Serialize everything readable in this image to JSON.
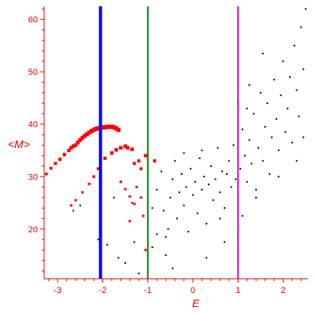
{
  "chart_data": {
    "type": "scatter",
    "xlabel": "E",
    "ylabel": "<M>",
    "xlim": [
      -3.3,
      2.55
    ],
    "ylim": [
      10.5,
      62.5
    ],
    "x_ticks": [
      -3,
      -2,
      -1,
      0,
      1,
      2
    ],
    "y_ticks": [
      20,
      30,
      40,
      50,
      60
    ],
    "x_tick_labels": [
      "-3",
      "-2",
      "-1",
      "0",
      "1",
      "2"
    ],
    "y_tick_labels": [
      "20",
      "30",
      "40",
      "50",
      "60"
    ],
    "grid": false,
    "colors": {
      "axis": "#e00000",
      "red_series": "#ff0000",
      "black_series": "#000000",
      "line_blue": "#0000ff",
      "line_green": "#008000",
      "line_magenta": "#dd00dd"
    },
    "vertical_lines": [
      {
        "x": -2.05,
        "color": "#0000ff"
      },
      {
        "x": -1.0,
        "color": "#008000"
      },
      {
        "x": 1.0,
        "color": "#dd00dd"
      }
    ],
    "series": [
      {
        "marker": "square",
        "color": "#ff0000",
        "points": [
          [
            -2.6,
            36.0
          ],
          [
            -2.55,
            36.5
          ],
          [
            -2.5,
            37.0
          ],
          [
            -2.45,
            37.4
          ],
          [
            -2.4,
            37.8
          ],
          [
            -2.35,
            38.1
          ],
          [
            -2.3,
            38.4
          ],
          [
            -2.25,
            38.7
          ],
          [
            -2.2,
            38.9
          ],
          [
            -2.15,
            39.1
          ],
          [
            -2.1,
            39.2
          ],
          [
            -2.05,
            39.3
          ],
          [
            -2.0,
            39.4
          ],
          [
            -1.95,
            39.4
          ],
          [
            -1.9,
            39.5
          ],
          [
            -1.85,
            39.5
          ],
          [
            -1.8,
            39.5
          ],
          [
            -1.75,
            39.4
          ],
          [
            -1.7,
            39.2
          ],
          [
            -1.65,
            38.9
          ],
          [
            -2.75,
            35.0
          ],
          [
            -2.85,
            34.2
          ],
          [
            -2.95,
            33.3
          ],
          [
            -3.05,
            32.5
          ],
          [
            -3.15,
            31.6
          ],
          [
            -3.25,
            30.5
          ],
          [
            -2.7,
            35.5
          ],
          [
            -2.65,
            35.8
          ],
          [
            -1.95,
            33.5
          ],
          [
            -1.8,
            34.5
          ],
          [
            -1.7,
            35.1
          ],
          [
            -1.6,
            35.5
          ],
          [
            -1.5,
            35.8
          ],
          [
            -1.45,
            35.5
          ],
          [
            -1.35,
            35.2
          ],
          [
            -2.1,
            31.5
          ],
          [
            -2.2,
            30.0
          ],
          [
            -2.3,
            28.6
          ],
          [
            -2.45,
            27.0
          ],
          [
            -2.6,
            25.5
          ],
          [
            -2.7,
            24.5
          ],
          [
            -1.6,
            29.0
          ],
          [
            -1.5,
            27.6
          ],
          [
            -1.4,
            26.2
          ],
          [
            -1.3,
            24.8
          ],
          [
            -1.2,
            33.0
          ],
          [
            -1.15,
            31.5
          ],
          [
            -1.25,
            28.0
          ],
          [
            -1.15,
            26.0
          ],
          [
            -1.3,
            32.5
          ],
          [
            -1.05,
            34.0
          ],
          [
            -0.85,
            33.0
          ],
          [
            -1.1,
            22.5
          ],
          [
            -1.05,
            16.0
          ],
          [
            -1.4,
            21.5
          ]
        ]
      },
      {
        "marker": "dot",
        "color": "#000000",
        "points": [
          [
            -2.1,
            18.0
          ],
          [
            -1.9,
            17.0
          ],
          [
            -1.65,
            14.5
          ],
          [
            -1.5,
            13.5
          ],
          [
            -1.3,
            17.5
          ],
          [
            -1.2,
            11.5
          ],
          [
            -0.9,
            16.5
          ],
          [
            -0.8,
            19.0
          ],
          [
            -0.6,
            18.5
          ],
          [
            -0.45,
            12.5
          ],
          [
            -2.65,
            23.5
          ],
          [
            -2.5,
            24.5
          ],
          [
            -1.75,
            26.0
          ],
          [
            -1.35,
            25.0
          ],
          [
            -0.9,
            24.0
          ],
          [
            -0.8,
            27.5
          ],
          [
            -0.7,
            31.0
          ],
          [
            -0.65,
            23.5
          ],
          [
            -0.55,
            20.0
          ],
          [
            -0.5,
            26.0
          ],
          [
            -0.45,
            29.5
          ],
          [
            -0.4,
            33.0
          ],
          [
            -0.35,
            22.0
          ],
          [
            -0.3,
            27.0
          ],
          [
            -0.25,
            30.5
          ],
          [
            -0.2,
            24.5
          ],
          [
            -0.15,
            28.0
          ],
          [
            -0.1,
            19.5
          ],
          [
            -0.05,
            31.5
          ],
          [
            0.0,
            26.5
          ],
          [
            0.05,
            29.0
          ],
          [
            0.1,
            23.0
          ],
          [
            0.15,
            33.5
          ],
          [
            0.2,
            27.5
          ],
          [
            0.25,
            30.0
          ],
          [
            0.3,
            21.0
          ],
          [
            0.35,
            28.5
          ],
          [
            0.4,
            32.0
          ],
          [
            0.45,
            25.5
          ],
          [
            0.5,
            29.5
          ],
          [
            0.55,
            35.5
          ],
          [
            0.6,
            27.0
          ],
          [
            0.65,
            31.0
          ],
          [
            0.7,
            24.0
          ],
          [
            0.75,
            30.5
          ],
          [
            0.8,
            33.0
          ],
          [
            0.85,
            28.0
          ],
          [
            0.9,
            36.0
          ],
          [
            0.95,
            29.5
          ],
          [
            1.0,
            18.5
          ],
          [
            1.05,
            31.5
          ],
          [
            1.1,
            39.0
          ],
          [
            1.15,
            34.0
          ],
          [
            1.2,
            29.0
          ],
          [
            1.25,
            37.0
          ],
          [
            1.3,
            32.5
          ],
          [
            1.35,
            42.0
          ],
          [
            1.4,
            27.5
          ],
          [
            1.45,
            35.5
          ],
          [
            1.5,
            46.0
          ],
          [
            1.55,
            33.0
          ],
          [
            1.6,
            39.5
          ],
          [
            1.65,
            44.0
          ],
          [
            1.7,
            30.5
          ],
          [
            1.75,
            37.5
          ],
          [
            1.8,
            48.5
          ],
          [
            1.85,
            41.0
          ],
          [
            1.9,
            35.0
          ],
          [
            1.95,
            45.5
          ],
          [
            2.0,
            52.0
          ],
          [
            2.05,
            38.5
          ],
          [
            2.1,
            43.0
          ],
          [
            2.15,
            49.0
          ],
          [
            2.2,
            36.5
          ],
          [
            2.25,
            55.0
          ],
          [
            2.3,
            46.5
          ],
          [
            2.35,
            41.5
          ],
          [
            2.4,
            58.5
          ],
          [
            2.45,
            50.5
          ],
          [
            2.5,
            62.0
          ],
          [
            1.2,
            43.0
          ],
          [
            1.25,
            47.5
          ],
          [
            1.0,
            44.0
          ],
          [
            1.55,
            53.5
          ],
          [
            1.1,
            22.5
          ],
          [
            0.7,
            17.5
          ],
          [
            0.3,
            14.5
          ],
          [
            -0.6,
            15.0
          ],
          [
            1.9,
            30.0
          ],
          [
            2.3,
            33.0
          ],
          [
            2.45,
            37.5
          ],
          [
            0.2,
            35.0
          ],
          [
            -0.2,
            34.5
          ],
          [
            1.4,
            26.0
          ],
          [
            0.6,
            22.0
          ]
        ]
      }
    ]
  }
}
